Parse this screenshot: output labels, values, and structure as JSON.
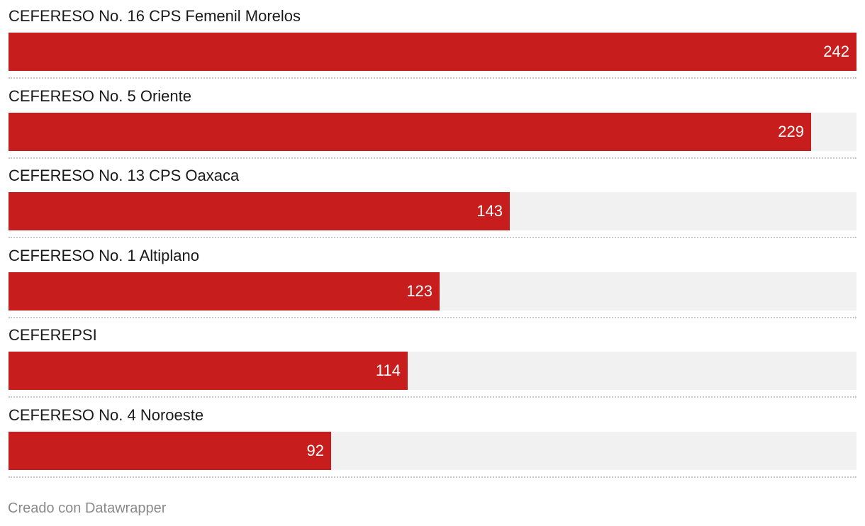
{
  "chart_data": {
    "type": "bar",
    "orientation": "horizontal",
    "categories": [
      "CEFERESO No. 16 CPS Femenil Morelos",
      "CEFERESO No. 5 Oriente",
      "CEFERESO No. 13 CPS Oaxaca",
      "CEFERESO No. 1 Altiplano",
      "CEFEREPSI",
      "CEFERESO No. 4 Noroeste"
    ],
    "values": [
      242,
      229,
      143,
      123,
      114,
      92
    ],
    "xlim": [
      0,
      242
    ],
    "grid": false,
    "bar_color": "#c71d1d",
    "track_color": "#f1f1f1"
  },
  "footer": {
    "credit": "Creado con Datawrapper"
  }
}
